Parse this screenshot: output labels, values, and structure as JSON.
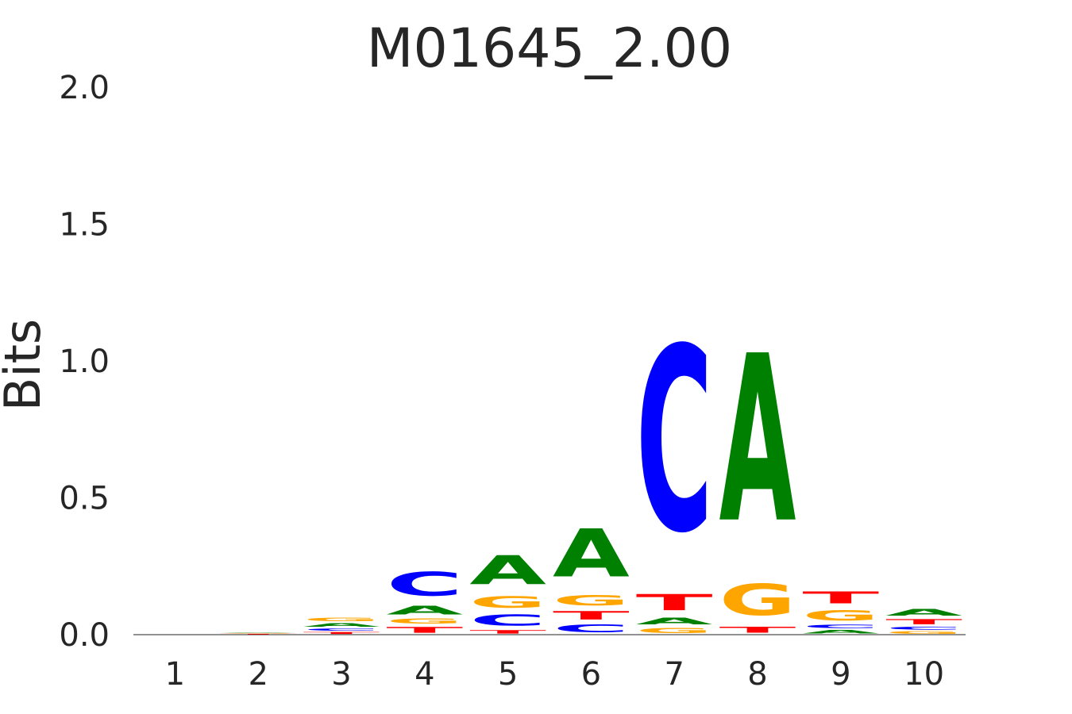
{
  "chart_data": {
    "type": "sequence-logo",
    "title": "M01645_2.00",
    "xlabel": "",
    "ylabel": "Bits",
    "ylim": [
      0,
      2
    ],
    "yticks": [
      "0.0",
      "0.5",
      "1.0",
      "1.5",
      "2.0"
    ],
    "ytick_values": [
      0,
      0.5,
      1.0,
      1.5,
      2.0
    ],
    "categories": [
      "1",
      "2",
      "3",
      "4",
      "5",
      "6",
      "7",
      "8",
      "9",
      "10"
    ],
    "grid": false,
    "colors": {
      "A": "#008000",
      "C": "#0000ff",
      "G": "#ffa500",
      "T": "#ff0000"
    },
    "positions": [
      {
        "pos": "1",
        "stack": []
      },
      {
        "pos": "2",
        "stack": [
          [
            "T",
            0.004
          ],
          [
            "G",
            0.002
          ],
          [
            "A",
            0.002
          ]
        ]
      },
      {
        "pos": "3",
        "stack": [
          [
            "T",
            0.012
          ],
          [
            "C",
            0.013
          ],
          [
            "A",
            0.02
          ],
          [
            "G",
            0.02
          ]
        ]
      },
      {
        "pos": "4",
        "stack": [
          [
            "T",
            0.034
          ],
          [
            "G",
            0.03
          ],
          [
            "A",
            0.05
          ],
          [
            "C",
            0.14
          ]
        ]
      },
      {
        "pos": "5",
        "stack": [
          [
            "T",
            0.02
          ],
          [
            "C",
            0.065
          ],
          [
            "G",
            0.065
          ],
          [
            "A",
            0.17
          ]
        ]
      },
      {
        "pos": "6",
        "stack": [
          [
            "C",
            0.045
          ],
          [
            "T",
            0.05
          ],
          [
            "G",
            0.06
          ],
          [
            "A",
            0.28
          ]
        ]
      },
      {
        "pos": "7",
        "stack": [
          [
            "G",
            0.03
          ],
          [
            "A",
            0.04
          ],
          [
            "T",
            0.095
          ],
          [
            "C",
            1.08
          ]
        ]
      },
      {
        "pos": "8",
        "stack": [
          [
            "T",
            0.035
          ],
          [
            "G",
            0.185
          ],
          [
            "A",
            0.98
          ]
        ]
      },
      {
        "pos": "9",
        "stack": [
          [
            "A",
            0.02
          ],
          [
            "C",
            0.02
          ],
          [
            "G",
            0.06
          ],
          [
            "T",
            0.07
          ]
        ]
      },
      {
        "pos": "10",
        "stack": [
          [
            "G",
            0.015
          ],
          [
            "C",
            0.017
          ],
          [
            "T",
            0.03
          ],
          [
            "A",
            0.04
          ]
        ]
      }
    ]
  }
}
